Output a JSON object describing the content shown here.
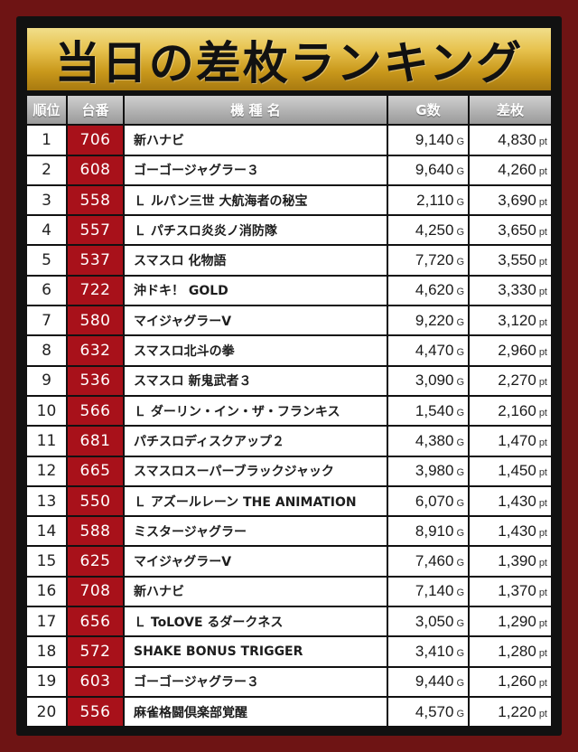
{
  "title": "当日の差枚ランキング",
  "header": {
    "rank": "順位",
    "machine_no": "台番",
    "model": "機 種 名",
    "games": "G数",
    "diff": "差枚"
  },
  "units": {
    "games": "G",
    "diff": "pt"
  },
  "colors": {
    "background": "#6e1414",
    "frame": "#111111",
    "banner_gold": "#e7c24e",
    "machine_cell": "#a8111a",
    "header_gray": "#b0b0b0"
  },
  "rows": [
    {
      "rank": "1",
      "machine_no": "706",
      "model": "新ハナビ",
      "games": "9,140",
      "diff": "4,830"
    },
    {
      "rank": "2",
      "machine_no": "608",
      "model": "ゴーゴージャグラー３",
      "games": "9,640",
      "diff": "4,260"
    },
    {
      "rank": "3",
      "machine_no": "558",
      "model": "Ｌ ルパン三世 大航海者の秘宝",
      "games": "2,110",
      "diff": "3,690"
    },
    {
      "rank": "4",
      "machine_no": "557",
      "model": "Ｌ パチスロ炎炎ノ消防隊",
      "games": "4,250",
      "diff": "3,650"
    },
    {
      "rank": "5",
      "machine_no": "537",
      "model": "スマスロ 化物語",
      "games": "7,720",
      "diff": "3,550"
    },
    {
      "rank": "6",
      "machine_no": "722",
      "model": "沖ドキ！ GOLD",
      "games": "4,620",
      "diff": "3,330"
    },
    {
      "rank": "7",
      "machine_no": "580",
      "model": "マイジャグラーV",
      "games": "9,220",
      "diff": "3,120"
    },
    {
      "rank": "8",
      "machine_no": "632",
      "model": "スマスロ北斗の拳",
      "games": "4,470",
      "diff": "2,960"
    },
    {
      "rank": "9",
      "machine_no": "536",
      "model": "スマスロ 新鬼武者３",
      "games": "3,090",
      "diff": "2,270"
    },
    {
      "rank": "10",
      "machine_no": "566",
      "model": "Ｌ ダーリン・イン・ザ・フランキス",
      "games": "1,540",
      "diff": "2,160"
    },
    {
      "rank": "11",
      "machine_no": "681",
      "model": "パチスロディスクアップ２",
      "games": "4,380",
      "diff": "1,470"
    },
    {
      "rank": "12",
      "machine_no": "665",
      "model": "スマスロスーパーブラックジャック",
      "games": "3,980",
      "diff": "1,450"
    },
    {
      "rank": "13",
      "machine_no": "550",
      "model": "Ｌ アズールレーン THE ANIMATION",
      "games": "6,070",
      "diff": "1,430"
    },
    {
      "rank": "14",
      "machine_no": "588",
      "model": "ミスタージャグラー",
      "games": "8,910",
      "diff": "1,430"
    },
    {
      "rank": "15",
      "machine_no": "625",
      "model": "マイジャグラーV",
      "games": "7,460",
      "diff": "1,390"
    },
    {
      "rank": "16",
      "machine_no": "708",
      "model": "新ハナビ",
      "games": "7,140",
      "diff": "1,370"
    },
    {
      "rank": "17",
      "machine_no": "656",
      "model": "Ｌ ToLOVE るダークネス",
      "games": "3,050",
      "diff": "1,290"
    },
    {
      "rank": "18",
      "machine_no": "572",
      "model": "SHAKE BONUS TRIGGER",
      "games": "3,410",
      "diff": "1,280"
    },
    {
      "rank": "19",
      "machine_no": "603",
      "model": "ゴーゴージャグラー３",
      "games": "9,440",
      "diff": "1,260"
    },
    {
      "rank": "20",
      "machine_no": "556",
      "model": "麻雀格闘倶楽部覚醒",
      "games": "4,570",
      "diff": "1,220"
    }
  ]
}
